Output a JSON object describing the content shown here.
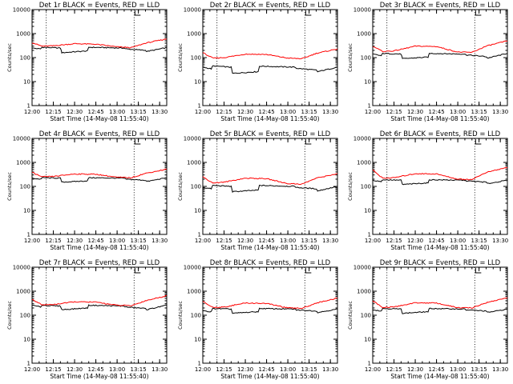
{
  "chart_data": [
    {
      "type": "line",
      "title": "Det 1r BLACK = Events, RED = LLD",
      "xlabel": "Start Time (14-May-08 11:55:40)",
      "ylabel": "Counts/sec",
      "yscale": "log",
      "ylim": [
        1,
        10000
      ],
      "yticks": [
        "1",
        "10",
        "100",
        "1000",
        "10000"
      ],
      "xlim": [
        "12:00",
        "13:35"
      ],
      "xticks": [
        "12:00",
        "12:15",
        "12:30",
        "12:45",
        "13:00",
        "13:15",
        "13:30"
      ],
      "vlines": [
        "12:10",
        "13:12"
      ],
      "series": [
        {
          "color": "#000000",
          "x": [
            "12:00",
            "12:06",
            "12:07",
            "12:20",
            "12:21",
            "12:39",
            "12:40",
            "13:05",
            "13:06",
            "13:20",
            "13:21",
            "13:35"
          ],
          "values": [
            250,
            230,
            270,
            250,
            160,
            190,
            270,
            250,
            230,
            200,
            180,
            260
          ]
        },
        {
          "color": "#ff0000",
          "x": [
            "12:00",
            "12:07",
            "12:15",
            "12:30",
            "12:45",
            "13:00",
            "13:10",
            "13:20",
            "13:35"
          ],
          "values": [
            420,
            300,
            310,
            380,
            360,
            280,
            260,
            400,
            600
          ]
        }
      ]
    },
    {
      "type": "line",
      "title": "Det 2r BLACK = Events, RED = LLD",
      "xlabel": "Start Time (14-May-08 11:55:40)",
      "ylabel": "Counts/sec",
      "yscale": "log",
      "ylim": [
        1,
        10000
      ],
      "yticks": [
        "1",
        "10",
        "100",
        "1000",
        "10000"
      ],
      "xlim": [
        "12:00",
        "13:35"
      ],
      "xticks": [
        "12:00",
        "12:15",
        "12:30",
        "12:45",
        "13:00",
        "13:15",
        "13:30"
      ],
      "vlines": [
        "12:10",
        "13:12"
      ],
      "series": [
        {
          "color": "#000000",
          "x": [
            "12:00",
            "12:06",
            "12:07",
            "12:20",
            "12:21",
            "12:39",
            "12:40",
            "13:05",
            "13:06",
            "13:20",
            "13:21",
            "13:35"
          ],
          "values": [
            40,
            34,
            45,
            40,
            22,
            26,
            44,
            40,
            36,
            30,
            26,
            40
          ]
        },
        {
          "color": "#ff0000",
          "x": [
            "12:00",
            "12:07",
            "12:15",
            "12:30",
            "12:45",
            "13:00",
            "13:10",
            "13:20",
            "13:35"
          ],
          "values": [
            160,
            95,
            100,
            140,
            135,
            95,
            90,
            150,
            230
          ]
        }
      ]
    },
    {
      "type": "line",
      "title": "Det 3r BLACK = Events, RED = LLD",
      "xlabel": "Start Time (14-May-08 11:55:40)",
      "ylabel": "Counts/sec",
      "yscale": "log",
      "ylim": [
        1,
        10000
      ],
      "yticks": [
        "1",
        "10",
        "100",
        "1000",
        "10000"
      ],
      "xlim": [
        "12:00",
        "13:35"
      ],
      "xticks": [
        "12:00",
        "12:15",
        "12:30",
        "12:45",
        "13:00",
        "13:15",
        "13:30"
      ],
      "vlines": [
        "12:10",
        "13:12"
      ],
      "series": [
        {
          "color": "#000000",
          "x": [
            "12:00",
            "12:06",
            "12:07",
            "12:20",
            "12:21",
            "12:39",
            "12:40",
            "13:05",
            "13:06",
            "13:20",
            "13:21",
            "13:35"
          ],
          "values": [
            140,
            120,
            150,
            140,
            90,
            105,
            150,
            140,
            130,
            110,
            95,
            150
          ]
        },
        {
          "color": "#ff0000",
          "x": [
            "12:00",
            "12:07",
            "12:15",
            "12:30",
            "12:45",
            "13:00",
            "13:10",
            "13:20",
            "13:35"
          ],
          "values": [
            300,
            180,
            190,
            300,
            290,
            170,
            165,
            300,
            500
          ]
        }
      ]
    },
    {
      "type": "line",
      "title": "Det 4r BLACK = Events, RED = LLD",
      "xlabel": "Start Time (14-May-08 11:55:40)",
      "ylabel": "Counts/sec",
      "yscale": "log",
      "ylim": [
        1,
        10000
      ],
      "yticks": [
        "1",
        "10",
        "100",
        "1000",
        "10000"
      ],
      "xlim": [
        "12:00",
        "13:35"
      ],
      "xticks": [
        "12:00",
        "12:15",
        "12:30",
        "12:45",
        "13:00",
        "13:15",
        "13:30"
      ],
      "vlines": [
        "12:10",
        "13:12"
      ],
      "series": [
        {
          "color": "#000000",
          "x": [
            "12:00",
            "12:06",
            "12:07",
            "12:20",
            "12:21",
            "12:39",
            "12:40",
            "13:05",
            "13:06",
            "13:20",
            "13:21",
            "13:35"
          ],
          "values": [
            220,
            200,
            230,
            220,
            150,
            170,
            230,
            220,
            200,
            180,
            160,
            230
          ]
        },
        {
          "color": "#ff0000",
          "x": [
            "12:00",
            "12:07",
            "12:15",
            "12:30",
            "12:45",
            "13:00",
            "13:10",
            "13:20",
            "13:35"
          ],
          "values": [
            380,
            250,
            260,
            330,
            320,
            240,
            230,
            350,
            520
          ]
        }
      ]
    },
    {
      "type": "line",
      "title": "Det 5r BLACK = Events, RED = LLD",
      "xlabel": "Start Time (14-May-08 11:55:40)",
      "ylabel": "Counts/sec",
      "yscale": "log",
      "ylim": [
        1,
        10000
      ],
      "yticks": [
        "1",
        "10",
        "100",
        "1000",
        "10000"
      ],
      "xlim": [
        "12:00",
        "13:35"
      ],
      "xticks": [
        "12:00",
        "12:15",
        "12:30",
        "12:45",
        "13:00",
        "13:15",
        "13:30"
      ],
      "vlines": [
        "12:10",
        "13:12"
      ],
      "series": [
        {
          "color": "#000000",
          "x": [
            "12:00",
            "12:06",
            "12:07",
            "12:20",
            "12:21",
            "12:39",
            "12:40",
            "13:05",
            "13:06",
            "13:20",
            "13:21",
            "13:35"
          ],
          "values": [
            90,
            80,
            110,
            100,
            60,
            70,
            110,
            100,
            90,
            80,
            65,
            100
          ]
        },
        {
          "color": "#ff0000",
          "x": [
            "12:00",
            "12:07",
            "12:15",
            "12:30",
            "12:45",
            "13:00",
            "13:10",
            "13:20",
            "13:35"
          ],
          "values": [
            250,
            140,
            150,
            220,
            210,
            130,
            125,
            220,
            340
          ]
        }
      ]
    },
    {
      "type": "line",
      "title": "Det 6r BLACK = Events, RED = LLD",
      "xlabel": "Start Time (14-May-08 11:55:40)",
      "ylabel": "Counts/sec",
      "yscale": "log",
      "ylim": [
        1,
        10000
      ],
      "yticks": [
        "1",
        "10",
        "100",
        "1000",
        "10000"
      ],
      "xlim": [
        "12:00",
        "13:35"
      ],
      "xticks": [
        "12:00",
        "12:15",
        "12:30",
        "12:45",
        "13:00",
        "13:15",
        "13:30"
      ],
      "vlines": [
        "12:10",
        "13:12"
      ],
      "series": [
        {
          "color": "#000000",
          "x": [
            "12:00",
            "12:06",
            "12:07",
            "12:20",
            "12:21",
            "12:39",
            "12:40",
            "13:05",
            "13:06",
            "13:20",
            "13:21",
            "13:35"
          ],
          "values": [
            180,
            160,
            190,
            180,
            120,
            140,
            190,
            180,
            170,
            150,
            130,
            180
          ]
        },
        {
          "color": "#ff0000",
          "x": [
            "12:00",
            "12:07",
            "12:15",
            "12:30",
            "12:45",
            "13:00",
            "13:10",
            "13:20",
            "13:35"
          ],
          "values": [
            480,
            220,
            230,
            340,
            330,
            200,
            195,
            380,
            620
          ]
        }
      ]
    },
    {
      "type": "line",
      "title": "Det 7r BLACK = Events, RED = LLD",
      "xlabel": "Start Time (14-May-08 11:55:40)",
      "ylabel": "Counts/sec",
      "yscale": "log",
      "ylim": [
        1,
        10000
      ],
      "yticks": [
        "1",
        "10",
        "100",
        "1000",
        "10000"
      ],
      "xlim": [
        "12:00",
        "13:35"
      ],
      "xticks": [
        "12:00",
        "12:15",
        "12:30",
        "12:45",
        "13:00",
        "13:15",
        "13:30"
      ],
      "vlines": [
        "12:10",
        "13:12"
      ],
      "series": [
        {
          "color": "#000000",
          "x": [
            "12:00",
            "12:06",
            "12:07",
            "12:20",
            "12:21",
            "12:39",
            "12:40",
            "13:05",
            "13:06",
            "13:20",
            "13:21",
            "13:35"
          ],
          "values": [
            260,
            220,
            260,
            240,
            170,
            200,
            260,
            240,
            220,
            190,
            170,
            260
          ]
        },
        {
          "color": "#ff0000",
          "x": [
            "12:00",
            "12:07",
            "12:15",
            "12:30",
            "12:45",
            "13:00",
            "13:10",
            "13:20",
            "13:35"
          ],
          "values": [
            450,
            270,
            280,
            360,
            350,
            260,
            250,
            400,
            650
          ]
        }
      ]
    },
    {
      "type": "line",
      "title": "Det 8r BLACK = Events, RED = LLD",
      "xlabel": "Start Time (14-May-08 11:55:40)",
      "ylabel": "Counts/sec",
      "yscale": "log",
      "ylim": [
        1,
        10000
      ],
      "yticks": [
        "1",
        "10",
        "100",
        "1000",
        "10000"
      ],
      "xlim": [
        "12:00",
        "13:35"
      ],
      "xticks": [
        "12:00",
        "12:15",
        "12:30",
        "12:45",
        "13:00",
        "13:15",
        "13:30"
      ],
      "vlines": [
        "12:10",
        "13:12"
      ],
      "series": [
        {
          "color": "#000000",
          "x": [
            "12:00",
            "12:06",
            "12:07",
            "12:20",
            "12:21",
            "12:39",
            "12:40",
            "13:05",
            "13:06",
            "13:20",
            "13:21",
            "13:35"
          ],
          "values": [
            150,
            140,
            190,
            180,
            120,
            140,
            190,
            180,
            165,
            150,
            130,
            180
          ]
        },
        {
          "color": "#ff0000",
          "x": [
            "12:00",
            "12:07",
            "12:15",
            "12:30",
            "12:45",
            "13:00",
            "13:10",
            "13:20",
            "13:35"
          ],
          "values": [
            380,
            210,
            220,
            320,
            310,
            200,
            195,
            320,
            520
          ]
        }
      ]
    },
    {
      "type": "line",
      "title": "Det 9r BLACK = Events, RED = LLD",
      "xlabel": "Start Time (14-May-08 11:55:40)",
      "ylabel": "Counts/sec",
      "yscale": "log",
      "ylim": [
        1,
        10000
      ],
      "yticks": [
        "1",
        "10",
        "100",
        "1000",
        "10000"
      ],
      "xlim": [
        "12:00",
        "13:35"
      ],
      "xticks": [
        "12:00",
        "12:15",
        "12:30",
        "12:45",
        "13:00",
        "13:15",
        "13:30"
      ],
      "vlines": [
        "12:10",
        "13:12"
      ],
      "series": [
        {
          "color": "#000000",
          "x": [
            "12:00",
            "12:06",
            "12:07",
            "12:20",
            "12:21",
            "12:39",
            "12:40",
            "13:05",
            "13:06",
            "13:20",
            "13:21",
            "13:35"
          ],
          "values": [
            170,
            150,
            190,
            180,
            120,
            140,
            190,
            180,
            165,
            150,
            130,
            180
          ]
        },
        {
          "color": "#ff0000",
          "x": [
            "12:00",
            "12:07",
            "12:15",
            "12:30",
            "12:45",
            "13:00",
            "13:10",
            "13:20",
            "13:35"
          ],
          "values": [
            400,
            210,
            220,
            330,
            320,
            205,
            200,
            330,
            540
          ]
        }
      ]
    }
  ]
}
